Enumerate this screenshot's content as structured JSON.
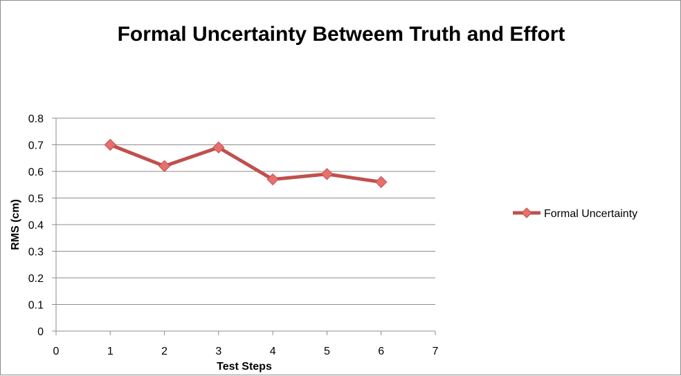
{
  "chart_data": {
    "type": "line",
    "title": "Formal Uncertainty Betweem Truth and Effort",
    "xlabel": "Test Steps",
    "ylabel": "RMS (cm)",
    "xlim": [
      0,
      7
    ],
    "ylim": [
      0,
      0.8
    ],
    "x_ticks": [
      "0",
      "1",
      "2",
      "3",
      "4",
      "5",
      "6",
      "7"
    ],
    "y_ticks": [
      "0",
      "0.1",
      "0.2",
      "0.3",
      "0.4",
      "0.5",
      "0.6",
      "0.7",
      "0.8"
    ],
    "grid": "horizontal",
    "legend_position": "right",
    "series": [
      {
        "name": "Formal Uncertainty",
        "color": "#c0504d",
        "marker_color": "#e8706c",
        "x": [
          1,
          2,
          3,
          4,
          5,
          6
        ],
        "y": [
          0.7,
          0.62,
          0.69,
          0.57,
          0.59,
          0.56
        ]
      }
    ]
  }
}
